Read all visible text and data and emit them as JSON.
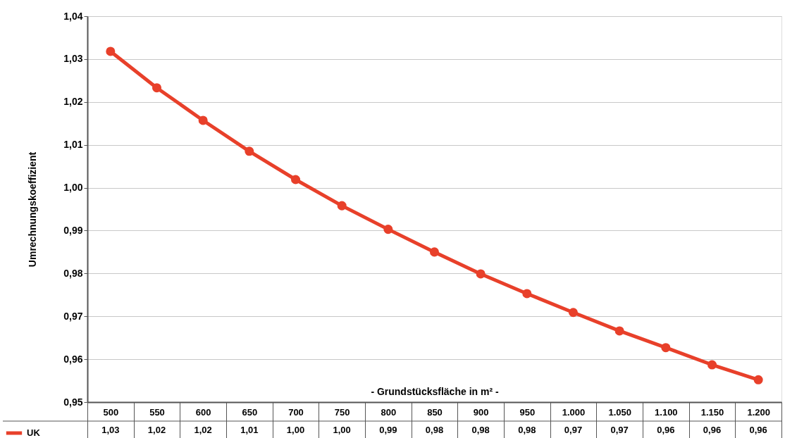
{
  "chart_data": {
    "type": "line",
    "ylabel": "Umrechnungskoeffizient",
    "xlabel": "- Grundstücksfläche  in m² -",
    "categories": [
      "500",
      "550",
      "600",
      "650",
      "700",
      "750",
      "800",
      "850",
      "900",
      "950",
      "1.000",
      "1.050",
      "1.100",
      "1.150",
      "1.200"
    ],
    "series": [
      {
        "name": "UK",
        "color": "#e8402a",
        "values": [
          1.0318,
          1.0233,
          1.0157,
          1.0085,
          1.0019,
          0.9958,
          0.9903,
          0.985,
          0.9799,
          0.9753,
          0.9709,
          0.9666,
          0.9627,
          0.9587,
          0.9552
        ],
        "value_labels": [
          "1,03",
          "1,02",
          "1,02",
          "1,01",
          "1,00",
          "1,00",
          "0,99",
          "0,98",
          "0,98",
          "0,98",
          "0,97",
          "0,97",
          "0,96",
          "0,96",
          "0,96"
        ]
      }
    ],
    "ylim": [
      0.95,
      1.04
    ],
    "yticks": [
      {
        "value": 0.95,
        "label": "0,95"
      },
      {
        "value": 0.96,
        "label": "0,96"
      },
      {
        "value": 0.97,
        "label": "0,97"
      },
      {
        "value": 0.98,
        "label": "0,98"
      },
      {
        "value": 0.99,
        "label": "0,99"
      },
      {
        "value": 1.0,
        "label": "1,00"
      },
      {
        "value": 1.01,
        "label": "1,01"
      },
      {
        "value": 1.02,
        "label": "1,02"
      },
      {
        "value": 1.03,
        "label": "1,03"
      },
      {
        "value": 1.04,
        "label": "1,04"
      }
    ],
    "grid": "y",
    "marker": "circle",
    "line_style": "solid",
    "legend": "bottom left"
  }
}
